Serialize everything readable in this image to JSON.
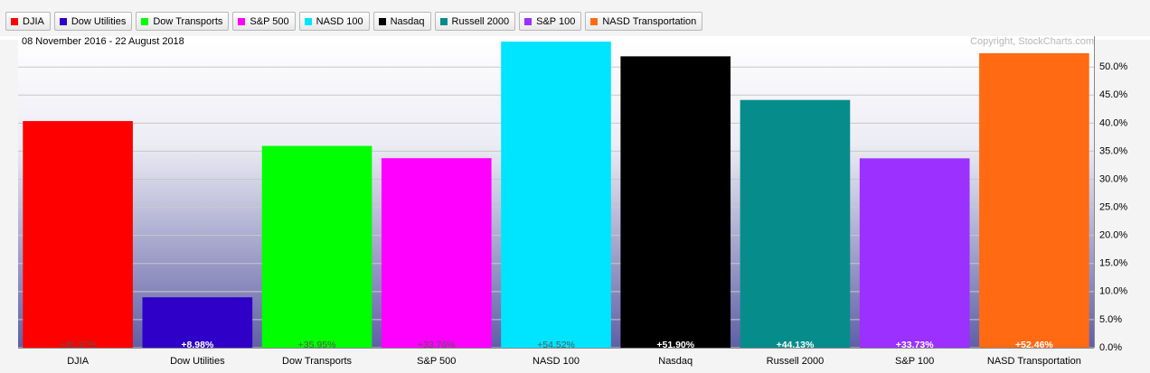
{
  "chart_data": {
    "type": "bar",
    "subtitle": "08 November 2016 - 22 August 2018",
    "annotation": "Copyright, StockCharts.com",
    "categories": [
      "DJIA",
      "Dow Utilities",
      "Dow Transports",
      "S&P 500",
      "NASD 100",
      "Nasdaq",
      "Russell 2000",
      "S&P 100",
      "NASD Transportation"
    ],
    "values": [
      40.37,
      8.98,
      35.95,
      33.76,
      54.52,
      51.9,
      44.13,
      33.73,
      52.46
    ],
    "value_labels": [
      "+40.37%",
      "+8.98%",
      "+35.95%",
      "+33.76%",
      "+54.52%",
      "+51.90%",
      "+44.13%",
      "+33.73%",
      "+52.46%"
    ],
    "colors": [
      "#ff0000",
      "#2e00c8",
      "#00ff00",
      "#ff00ff",
      "#00e5ff",
      "#000000",
      "#078c8c",
      "#9b30ff",
      "#ff6a13"
    ],
    "value_label_colors": [
      "#555555",
      "#ffffff",
      "#555555",
      "#555555",
      "#555555",
      "#ffffff",
      "#ffffff",
      "#ffffff",
      "#ffffff"
    ],
    "ylim": [
      0,
      55.5
    ],
    "yticks": [
      {
        "value": 0,
        "label": "0.0%"
      },
      {
        "value": 5,
        "label": "5.0%"
      },
      {
        "value": 10,
        "label": "10.0%"
      },
      {
        "value": 15,
        "label": "15.0%"
      },
      {
        "value": 20,
        "label": "20.0%"
      },
      {
        "value": 25,
        "label": "25.0%"
      },
      {
        "value": 30,
        "label": "30.0%"
      },
      {
        "value": 35,
        "label": "35.0%"
      },
      {
        "value": 40,
        "label": "40.0%"
      },
      {
        "value": 45,
        "label": "45.0%"
      },
      {
        "value": 50,
        "label": "50.0%"
      }
    ],
    "grid": true,
    "axis_side": "right"
  }
}
